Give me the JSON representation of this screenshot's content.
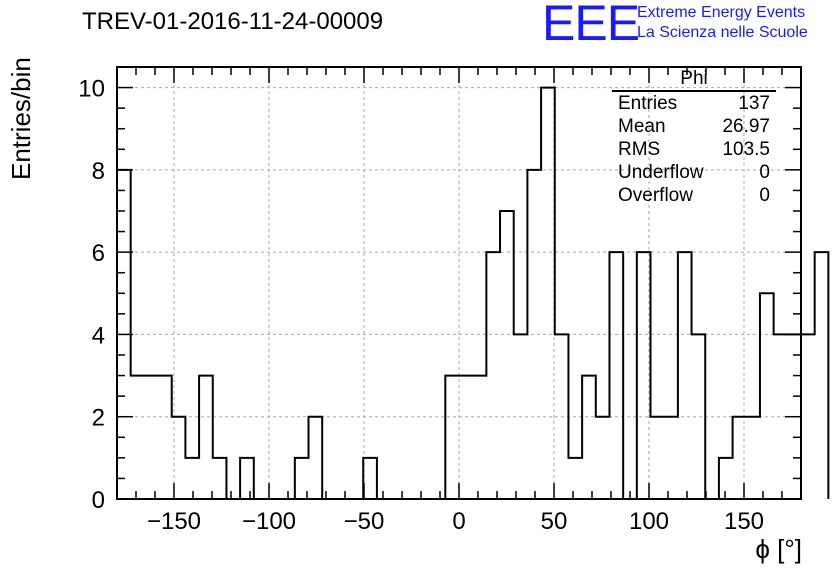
{
  "chart_data": {
    "type": "histogram",
    "title": "TREV-01-2016-11-24-00009",
    "xlabel": "ϕ [°]",
    "ylabel": "Entries/bin",
    "xlim": [
      -180,
      180
    ],
    "ylim": [
      0,
      10.5
    ],
    "bin_width": 7.2,
    "bin_edges_start": -180,
    "counts": [
      8,
      3,
      3,
      3,
      2,
      1,
      3,
      1,
      0,
      1,
      0,
      0,
      0,
      1,
      2,
      0,
      0,
      0,
      1,
      0,
      0,
      0,
      0,
      0,
      3,
      3,
      3,
      6,
      7,
      4,
      8,
      10,
      4,
      1,
      3,
      2,
      6,
      0,
      6,
      2,
      2,
      6,
      4,
      0,
      1,
      2,
      2,
      5,
      4,
      4,
      4,
      6
    ],
    "x_ticks": [
      -150,
      -100,
      -50,
      0,
      50,
      100,
      150
    ],
    "x_tick_labels": [
      "−150",
      "−100",
      "−50",
      "0",
      "50",
      "100",
      "150"
    ],
    "y_ticks": [
      0,
      2,
      4,
      6,
      8,
      10
    ],
    "y_tick_labels": [
      "0",
      "2",
      "4",
      "6",
      "8",
      "10"
    ],
    "grid": true,
    "line_color": "#000000",
    "grid_color": "#aaaaaa"
  },
  "stats_box": {
    "title": "Phi",
    "rows": [
      {
        "label": "Entries",
        "value": "137"
      },
      {
        "label": "Mean",
        "value": "26.97"
      },
      {
        "label": "RMS",
        "value": "103.5"
      },
      {
        "label": "Underflow",
        "value": "0"
      },
      {
        "label": "Overflow",
        "value": "0"
      }
    ]
  },
  "logo": {
    "mark": "EEE",
    "line1": "Extreme Energy Events",
    "line2": "La Scienza nelle Scuole",
    "color": "#1a1aff"
  }
}
